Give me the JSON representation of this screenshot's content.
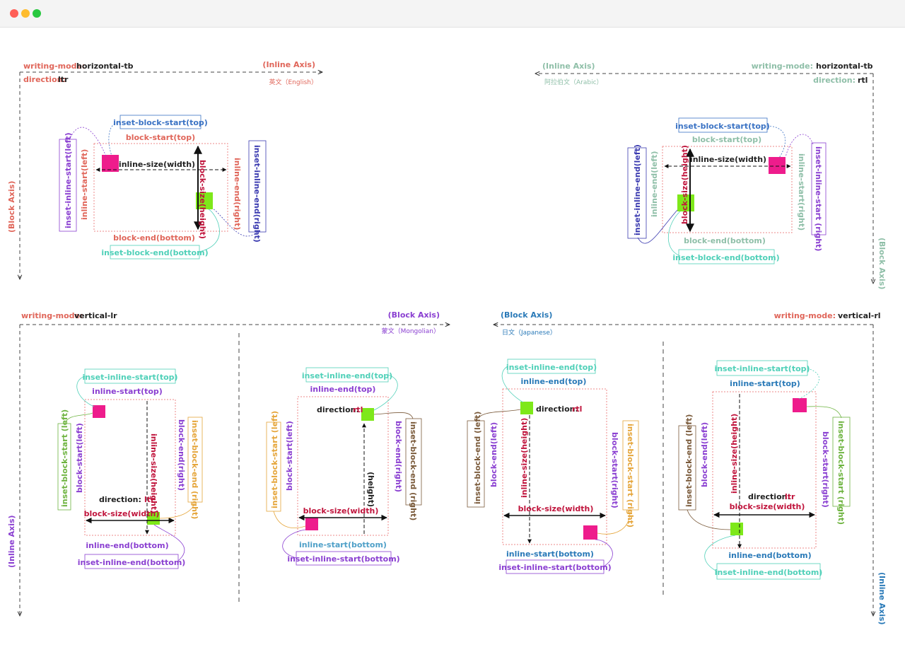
{
  "window": {
    "dots": [
      "#ff5f57",
      "#febc2e",
      "#28c840"
    ]
  },
  "colors": {
    "salmon": "#e0665a",
    "teal": "#4fd0b8",
    "blue": "#3b73c4",
    "purple": "#8a3fd1",
    "green": "#6db33f",
    "brown": "#7a5a3a",
    "magenta": "#ee1c8c",
    "lime": "#7ee81a",
    "dark": "#222222",
    "crimson": "#c0143c",
    "tealgray": "#8fbfa8",
    "orange": "#e5a53a"
  },
  "q1": {
    "wm_key": "writing-mode:",
    "wm_val": "horizontal-tb",
    "dir_key": "direction:",
    "dir_val": "ltr",
    "inline_axis": "(Inline Axis)",
    "lang": "英文（English）",
    "block_axis": "(Block Axis)",
    "inset_block_start": "inset-block-start(top)",
    "block_start": "block-start(top)",
    "inline_size": "inline-size(width)",
    "block_size": "block-size(height)",
    "inset_inline_start": "inset-inline-start(left)",
    "inline_start": "inline-start(left)",
    "inline_end": "inline-end(right)",
    "inset_inline_end": "inset-inline-end(right)",
    "block_end": "block-end(bottom)",
    "inset_block_end": "inset-block-end(bottom)"
  },
  "q2": {
    "wm_key": "writing-mode:",
    "wm_val": "horizontal-tb",
    "dir_key": "direction:",
    "dir_val": "rtl",
    "inline_axis": "(Inline Axis)",
    "lang": "阿拉伯文（Arabic）",
    "block_axis": "(Block Axis)",
    "inset_block_start": "inset-block-start(top)",
    "block_start": "block-start(top)",
    "inline_size": "inline-size(width)",
    "block_size": "block-size(height)",
    "inset_inline_end": "inset-inline-end(left)",
    "inline_end": "inline-end(left)",
    "inline_start": "inline-start(right)",
    "inset_inline_start": "inset-inline-start (right)",
    "block_end": "block-end(bottom)",
    "inset_block_end": "inset-block-end(bottom)"
  },
  "q3": {
    "wm_key": "writing-mode:",
    "wm_val": "vertical-lr",
    "block_axis": "(Block Axis)",
    "lang": "蒙文（Mongolian）",
    "inline_axis": "(Inline Axis)",
    "a": {
      "inset_inline_start": "inset-inline-start(top)",
      "inline_start": "inline-start(top)",
      "inset_block_start": "inset-block-start (left)",
      "block_start": "block-start(left)",
      "inline_size": "inline-size(height)",
      "inset_block_end": "inset-block-end (right)",
      "block_end": "block-end(right)",
      "dir_key": "direction:",
      "dir_val": "ltr",
      "block_size": "block-size(width)",
      "inline_end": "inline-end(bottom)",
      "inset_inline_end": "inset-inline-end(bottom)"
    },
    "b": {
      "inset_inline_end": "inset-inline-end(top)",
      "inline_end": "inline-end(top)",
      "dir_key": "direction:",
      "dir_val": "rtl",
      "inset_block_start": "inset-block-start (left)",
      "block_start": "block-start(left)",
      "height": "(height)",
      "block_end": "block-end(right)",
      "inset_block_end": "inset-block-end (right)",
      "block_size": "block-size(width)",
      "inline_start": "inline-start(bottom)",
      "inset_inline_start": "inset-inline-start(bottom)"
    }
  },
  "q4": {
    "wm_key": "writing-mode:",
    "wm_val": "vertical-rl",
    "block_axis": "(Block Axis)",
    "lang": "日文（Japanese）",
    "inline_axis": "(Inline Axis)",
    "a": {
      "inset_inline_end": "inset-inline-end(top)",
      "inline_end": "inline-end(top)",
      "dir_key": "direction:",
      "dir_val": "rtl",
      "inset_block_end": "inset-block-end (left)",
      "block_end": "block-end(left)",
      "inline_size": "inline-size(height)",
      "block_start": "block-start(right)",
      "inset_block_start": "inset-block-start (right)",
      "block_size": "block-size(width)",
      "inline_start": "inline-start(bottom)",
      "inset_inline_start": "inset-inline-start(bottom)"
    },
    "b": {
      "inset_inline_start": "inset-inline-start(top)",
      "inline_start": "inline-start(top)",
      "inset_block_end": "inset-block-end (left)",
      "block_end": "block-end(left)",
      "inline_size": "inline-size(height)",
      "dir_key": "direction:",
      "dir_val": "ltr",
      "block_size": "block-size(width)",
      "block_start": "block-start(right)",
      "inset_block_start": "inset-block-start (right)",
      "inline_end": "inline-end(bottom)",
      "inset_inline_end": "inset-inline-end(bottom)"
    }
  }
}
